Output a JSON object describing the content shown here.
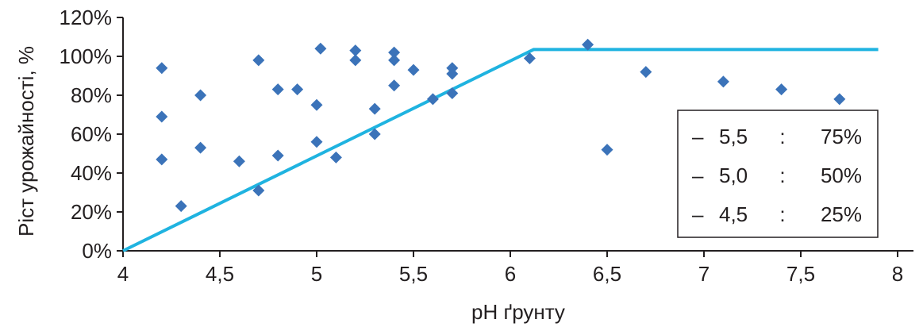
{
  "chart_data": {
    "type": "scatter",
    "xlabel": "pH ґрунту",
    "ylabel": "Ріст урожайності, %",
    "xlim": [
      4,
      8
    ],
    "ylim": [
      0,
      120
    ],
    "x_ticks": [
      4,
      4.5,
      5,
      5.5,
      6,
      6.5,
      7,
      7.5,
      8
    ],
    "x_tick_labels": [
      "4",
      "4,5",
      "5",
      "5,5",
      "6",
      "6,5",
      "7",
      "7,5",
      "8"
    ],
    "y_ticks": [
      0,
      20,
      40,
      60,
      80,
      100,
      120
    ],
    "y_tick_labels": [
      "0%",
      "20%",
      "40%",
      "60%",
      "80%",
      "100%",
      "120%"
    ],
    "grid": false,
    "points": [
      {
        "x": 4.2,
        "y": 94
      },
      {
        "x": 4.2,
        "y": 69
      },
      {
        "x": 4.2,
        "y": 47
      },
      {
        "x": 4.3,
        "y": 23
      },
      {
        "x": 4.4,
        "y": 80
      },
      {
        "x": 4.4,
        "y": 53
      },
      {
        "x": 4.6,
        "y": 46
      },
      {
        "x": 4.7,
        "y": 98
      },
      {
        "x": 4.7,
        "y": 31
      },
      {
        "x": 4.8,
        "y": 83
      },
      {
        "x": 4.8,
        "y": 49
      },
      {
        "x": 4.9,
        "y": 83
      },
      {
        "x": 5.0,
        "y": 75
      },
      {
        "x": 5.0,
        "y": 56
      },
      {
        "x": 5.02,
        "y": 104
      },
      {
        "x": 5.1,
        "y": 48
      },
      {
        "x": 5.2,
        "y": 103
      },
      {
        "x": 5.2,
        "y": 98
      },
      {
        "x": 5.3,
        "y": 73
      },
      {
        "x": 5.3,
        "y": 60
      },
      {
        "x": 5.4,
        "y": 102
      },
      {
        "x": 5.4,
        "y": 98
      },
      {
        "x": 5.4,
        "y": 85
      },
      {
        "x": 5.5,
        "y": 93
      },
      {
        "x": 5.6,
        "y": 78
      },
      {
        "x": 5.7,
        "y": 94
      },
      {
        "x": 5.7,
        "y": 91
      },
      {
        "x": 5.7,
        "y": 81
      },
      {
        "x": 6.1,
        "y": 99
      },
      {
        "x": 6.4,
        "y": 106
      },
      {
        "x": 6.5,
        "y": 52
      },
      {
        "x": 6.7,
        "y": 92
      },
      {
        "x": 7.1,
        "y": 87
      },
      {
        "x": 7.4,
        "y": 83
      },
      {
        "x": 7.7,
        "y": 78
      }
    ],
    "trend_line": [
      {
        "x": 4.0,
        "y": 0
      },
      {
        "x": 6.12,
        "y": 103.5
      },
      {
        "x": 7.9,
        "y": 103.5
      }
    ],
    "point_color": "#3b73b9",
    "line_color": "#1fb3e0",
    "legend": {
      "placement": "right",
      "entries": [
        {
          "dash": "–",
          "ph": "5,5",
          "sep": ":",
          "value": "75%"
        },
        {
          "dash": "–",
          "ph": "5,0",
          "sep": ":",
          "value": "50%"
        },
        {
          "dash": "–",
          "ph": "4,5",
          "sep": ":",
          "value": "25%"
        }
      ]
    }
  }
}
